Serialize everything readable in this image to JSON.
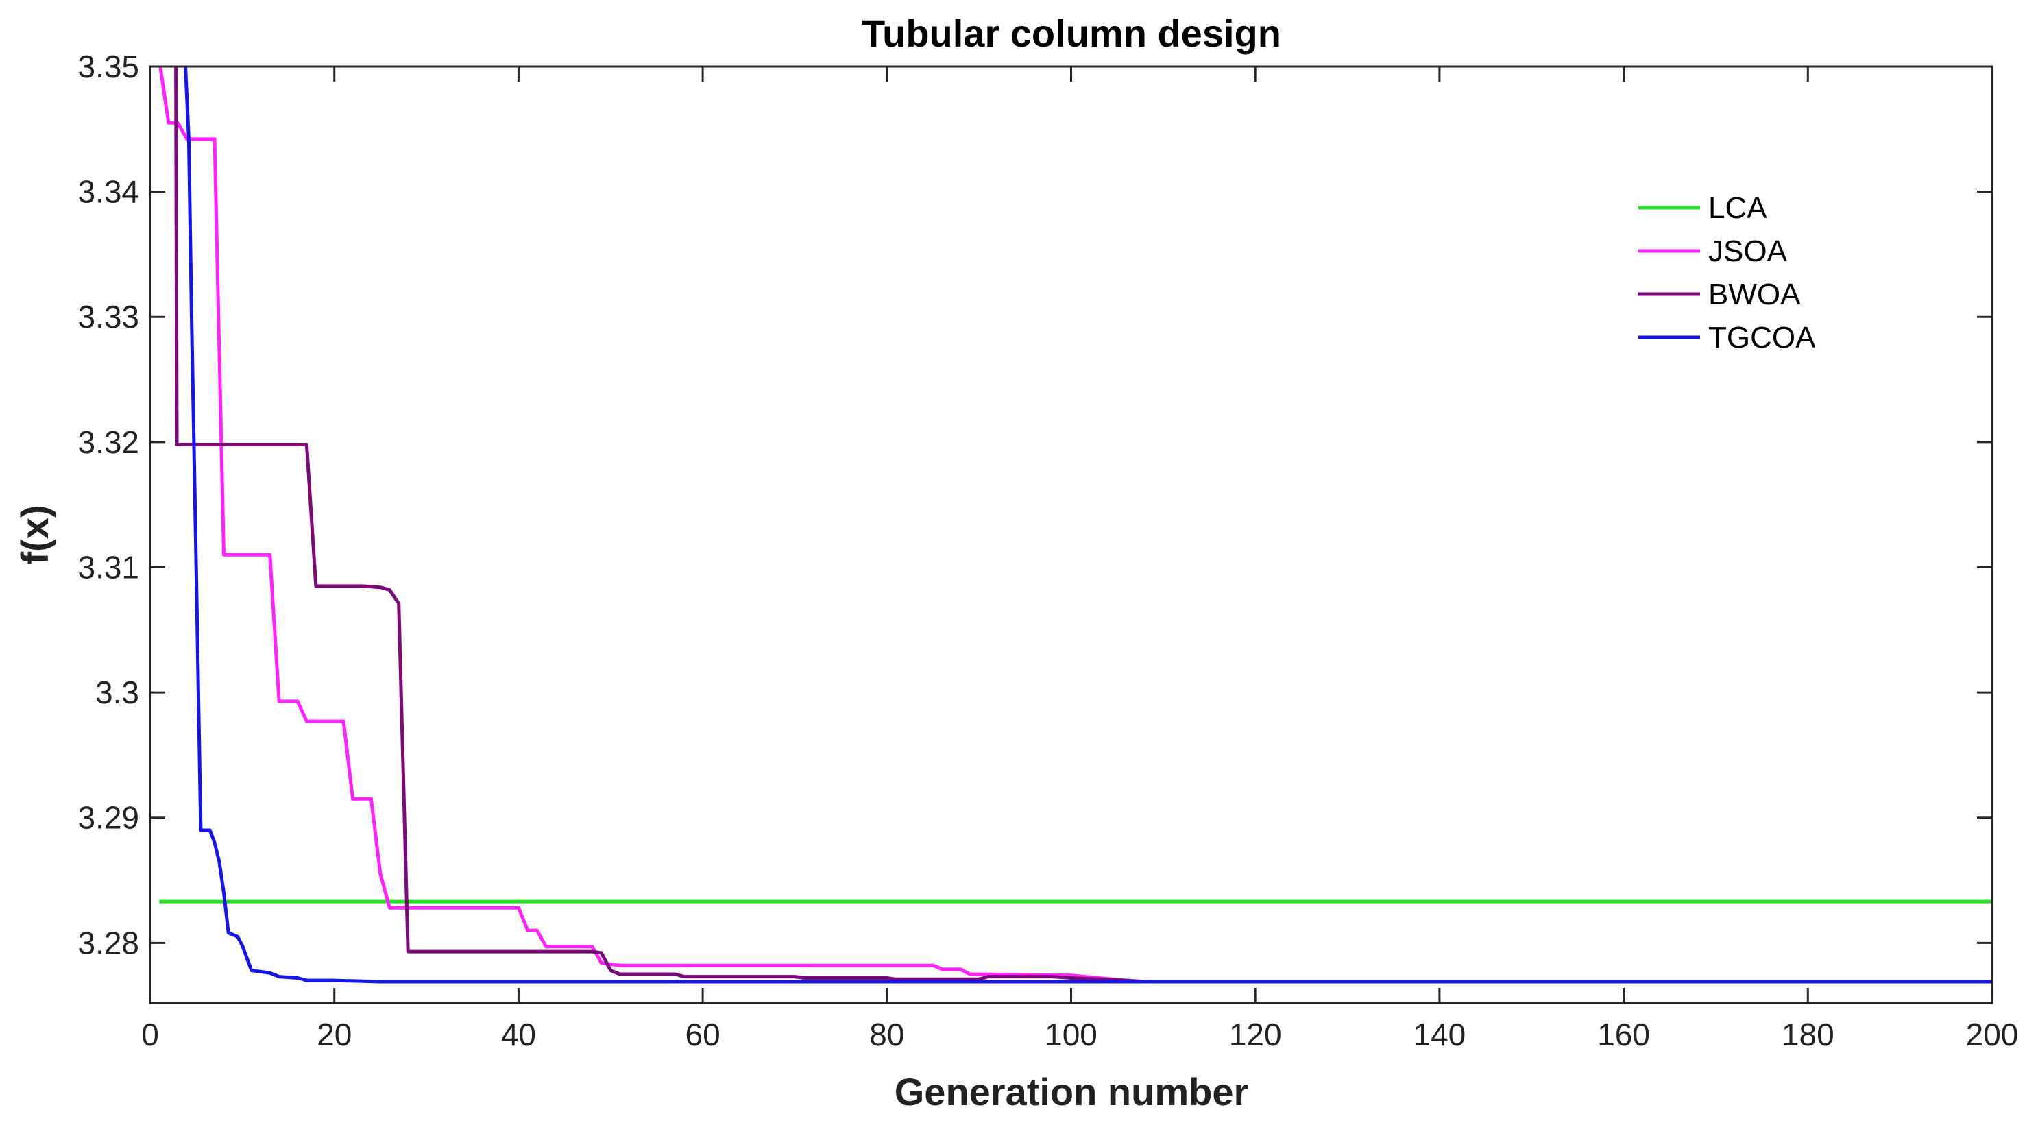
{
  "chart_data": {
    "type": "line",
    "title": "Tubular column design",
    "xlabel": "Generation number",
    "ylabel": "f(x)",
    "xlim": [
      0,
      200
    ],
    "ylim": [
      3.2752,
      3.35
    ],
    "xticks": [
      0,
      20,
      40,
      60,
      80,
      100,
      120,
      140,
      160,
      180,
      200
    ],
    "yticks": [
      3.28,
      3.29,
      3.3,
      3.31,
      3.32,
      3.33,
      3.34,
      3.35
    ],
    "ytick_labels": [
      "3.28",
      "3.29",
      "3.3",
      "3.31",
      "3.32",
      "3.33",
      "3.34",
      "3.35"
    ],
    "grid": false,
    "legend_position": "top-right",
    "series": [
      {
        "name": "LCA",
        "color": "#22e622",
        "points": [
          [
            1,
            3.2833
          ],
          [
            200,
            3.2833
          ]
        ]
      },
      {
        "name": "JSOA",
        "color": "#ff22ff",
        "points": [
          [
            1,
            3.3505
          ],
          [
            2,
            3.3455
          ],
          [
            3,
            3.3455
          ],
          [
            4,
            3.3442
          ],
          [
            7,
            3.3442
          ],
          [
            8,
            3.311
          ],
          [
            13,
            3.311
          ],
          [
            14,
            3.2993
          ],
          [
            16,
            3.2993
          ],
          [
            17,
            3.2977
          ],
          [
            21,
            3.2977
          ],
          [
            22,
            3.2915
          ],
          [
            24,
            3.2915
          ],
          [
            25,
            3.2855
          ],
          [
            26,
            3.2828
          ],
          [
            40,
            3.2828
          ],
          [
            41,
            3.281
          ],
          [
            42,
            3.281
          ],
          [
            43,
            3.2797
          ],
          [
            48,
            3.2797
          ],
          [
            49,
            3.2784
          ],
          [
            50,
            3.2783
          ],
          [
            51,
            3.2782
          ],
          [
            85,
            3.2782
          ],
          [
            86,
            3.2779
          ],
          [
            88,
            3.2779
          ],
          [
            89,
            3.2775
          ],
          [
            100,
            3.2774
          ],
          [
            103,
            3.2772
          ],
          [
            106,
            3.277
          ],
          [
            108,
            3.2769
          ],
          [
            200,
            3.2769
          ]
        ]
      },
      {
        "name": "BWOA",
        "color": "#7a0a7a",
        "points": [
          [
            2.8,
            3.3505
          ],
          [
            2.9,
            3.3198
          ],
          [
            17,
            3.3198
          ],
          [
            18,
            3.3085
          ],
          [
            23,
            3.3085
          ],
          [
            25,
            3.3084
          ],
          [
            26,
            3.3082
          ],
          [
            27,
            3.3071
          ],
          [
            28,
            3.2793
          ],
          [
            48,
            3.2793
          ],
          [
            49,
            3.2792
          ],
          [
            50,
            3.2778
          ],
          [
            51,
            3.2775
          ],
          [
            57,
            3.2775
          ],
          [
            58,
            3.2773
          ],
          [
            70,
            3.2773
          ],
          [
            71,
            3.2772
          ],
          [
            80,
            3.2772
          ],
          [
            81,
            3.2771
          ],
          [
            90,
            3.2771
          ],
          [
            91,
            3.2773
          ],
          [
            98,
            3.2773
          ],
          [
            100,
            3.2772
          ],
          [
            103,
            3.2771
          ],
          [
            106,
            3.277
          ],
          [
            108,
            3.2769
          ],
          [
            200,
            3.2769
          ]
        ]
      },
      {
        "name": "TGCOA",
        "color": "#1515e6",
        "points": [
          [
            3.8,
            3.3505
          ],
          [
            4.2,
            3.3442
          ],
          [
            4.5,
            3.33
          ],
          [
            5,
            3.31
          ],
          [
            5.5,
            3.289
          ],
          [
            6.5,
            3.289
          ],
          [
            7,
            3.288
          ],
          [
            7.5,
            3.2865
          ],
          [
            8,
            3.284
          ],
          [
            8.5,
            3.2808
          ],
          [
            9.5,
            3.2805
          ],
          [
            10,
            3.2798
          ],
          [
            11,
            3.2778
          ],
          [
            13,
            3.2776
          ],
          [
            14,
            3.2773
          ],
          [
            16,
            3.2772
          ],
          [
            17,
            3.277
          ],
          [
            20,
            3.277
          ],
          [
            25,
            3.2769
          ],
          [
            200,
            3.2769
          ]
        ]
      }
    ]
  }
}
